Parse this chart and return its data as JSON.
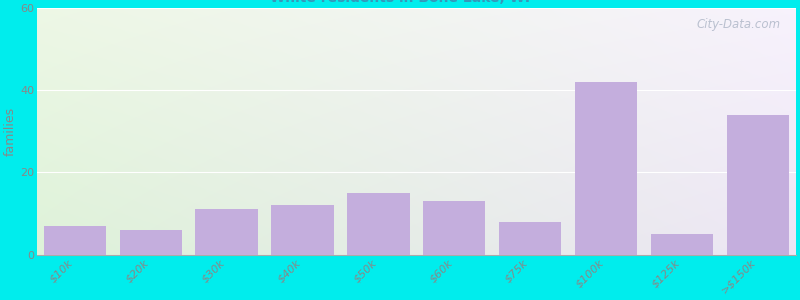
{
  "ylabel": "families",
  "categories": [
    "$10k",
    "$20k",
    "$30k",
    "$40k",
    "$50k",
    "$60k",
    "$75k",
    "$100k",
    "$125k",
    ">$150k"
  ],
  "values": [
    7,
    6,
    11,
    12,
    15,
    13,
    8,
    42,
    5,
    34
  ],
  "bar_color": "#c4aedd",
  "background_color": "#00eded",
  "plot_bg_left_top": "#eef5e8",
  "plot_bg_left_bottom": "#d8edd8",
  "plot_bg_right_top": "#f5f0f8",
  "plot_bg_right_bottom": "#ebe5f0",
  "ylim": [
    0,
    60
  ],
  "yticks": [
    0,
    20,
    40,
    60
  ],
  "title_fontsize": 14,
  "subtitle_fontsize": 10,
  "subtitle_color": "#3399bb",
  "ylabel_fontsize": 9,
  "tick_color": "#888888",
  "tick_fontsize": 8,
  "watermark_text": "City-Data.com"
}
